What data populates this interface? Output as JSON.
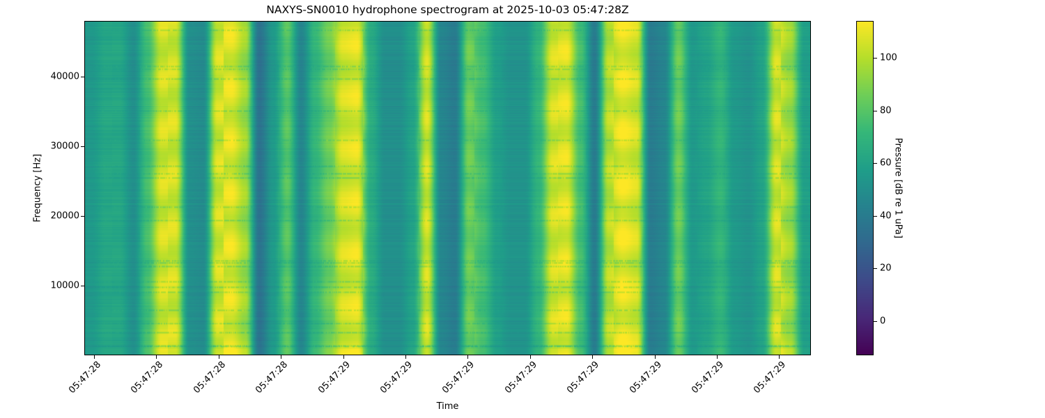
{
  "chart_data": {
    "type": "heatmap",
    "title": "NAXYS-SN0010 hydrophone spectrogram at 2025-10-03 05:47:28Z",
    "xlabel": "Time",
    "ylabel": "Frequency [Hz]",
    "colorbar_label": "Pressure [dB re 1 uPa]",
    "colormap": "viridis",
    "ylim": [
      0,
      48000
    ],
    "yticks": [
      10000,
      20000,
      30000,
      40000
    ],
    "xtick_labels": [
      "05:47:28",
      "05:47:28",
      "05:47:28",
      "05:47:28",
      "05:47:29",
      "05:47:29",
      "05:47:29",
      "05:47:29",
      "05:47:29",
      "05:47:29",
      "05:47:29",
      "05:47:29"
    ],
    "clim": [
      -13,
      114
    ],
    "cticks": [
      0,
      20,
      40,
      60,
      80,
      100
    ],
    "time_bin_mean_level_db": [
      55,
      62,
      62,
      50,
      75,
      105,
      105,
      50,
      48,
      105,
      108,
      95,
      35,
      55,
      80,
      45,
      70,
      85,
      105,
      108,
      65,
      50,
      50,
      60,
      105,
      45,
      40,
      85,
      75,
      58,
      52,
      52,
      70,
      105,
      108,
      75,
      40,
      100,
      110,
      105,
      40,
      45,
      85,
      55,
      60,
      70,
      55,
      52,
      60,
      105,
      95,
      58
    ]
  }
}
